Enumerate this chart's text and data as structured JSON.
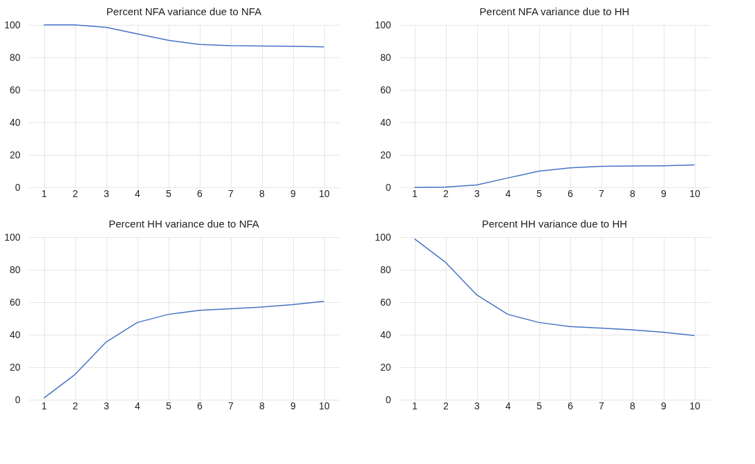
{
  "chart_data": [
    {
      "type": "line",
      "title": "Percent NFA variance due to NFA",
      "categories": [
        "1",
        "2",
        "3",
        "4",
        "5",
        "6",
        "7",
        "8",
        "9",
        "10"
      ],
      "values": [
        100,
        100,
        98.5,
        94.5,
        90.5,
        88,
        87.2,
        87,
        86.8,
        86.5
      ],
      "color": "#4472c4",
      "ylim": [
        0,
        100
      ],
      "yticks": [
        0,
        20,
        40,
        60,
        80,
        100
      ],
      "grid": true
    },
    {
      "type": "line",
      "title": "Percent NFA variance due to HH",
      "categories": [
        "1",
        "2",
        "3",
        "4",
        "5",
        "6",
        "7",
        "8",
        "9",
        "10"
      ],
      "values": [
        0,
        0.2,
        1.5,
        5.8,
        10,
        12,
        13,
        13.2,
        13.3,
        13.8
      ],
      "color": "#4472c4",
      "ylim": [
        0,
        100
      ],
      "yticks": [
        0,
        20,
        40,
        60,
        80,
        100
      ],
      "grid": true
    },
    {
      "type": "line",
      "title": "Percent HH variance due to NFA",
      "categories": [
        "1",
        "2",
        "3",
        "4",
        "5",
        "6",
        "7",
        "8",
        "9",
        "10"
      ],
      "values": [
        1,
        15.5,
        35.5,
        47.5,
        52.5,
        55,
        56,
        57,
        58.5,
        60.5
      ],
      "color": "#4472c4",
      "ylim": [
        0,
        100
      ],
      "yticks": [
        0,
        20,
        40,
        60,
        80,
        100
      ],
      "grid": true
    },
    {
      "type": "line",
      "title": "Percent HH variance due to HH",
      "categories": [
        "1",
        "2",
        "3",
        "4",
        "5",
        "6",
        "7",
        "8",
        "9",
        "10"
      ],
      "values": [
        99,
        84.5,
        64.5,
        52.5,
        47.5,
        45,
        44,
        43,
        41.5,
        39.5
      ],
      "color": "#4472c4",
      "ylim": [
        0,
        100
      ],
      "yticks": [
        0,
        20,
        40,
        60,
        80,
        100
      ],
      "grid": true
    }
  ]
}
